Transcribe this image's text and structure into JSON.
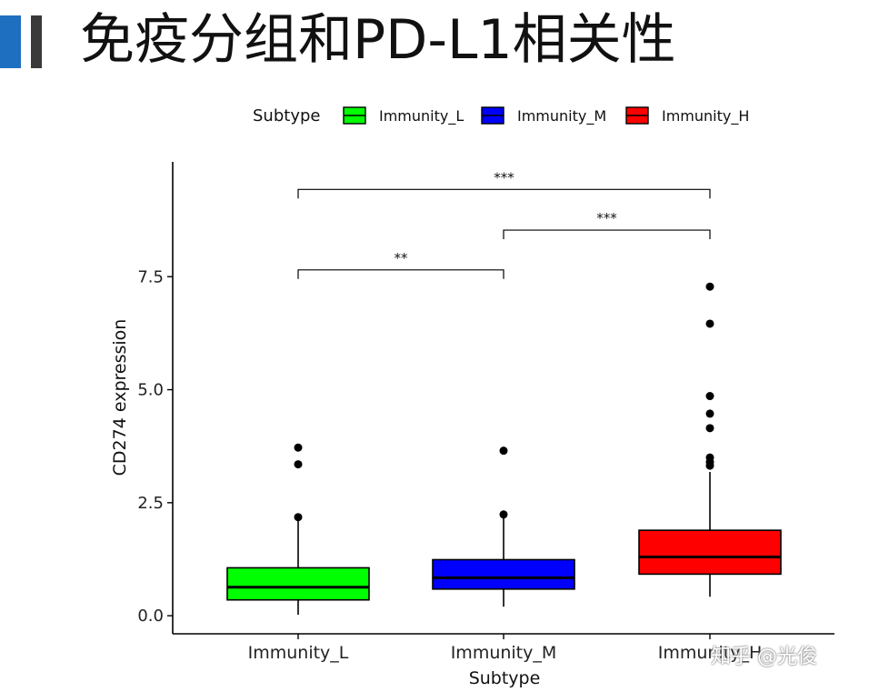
{
  "slide": {
    "title": "免疫分组和PD-L1相关性"
  },
  "watermark": "知乎 @光俊",
  "colors": {
    "accent_blue": "#1f6fc0",
    "accent_gray": "#3a3a3a"
  },
  "chart_data": {
    "type": "boxplot",
    "xlabel": "Subtype",
    "ylabel": "CD274 expression",
    "ylim": [
      -0.4,
      10.0
    ],
    "yticks": [
      0.0,
      2.5,
      5.0,
      7.5
    ],
    "ytick_labels": [
      "0.0",
      "2.5",
      "5.0",
      "7.5"
    ],
    "legend": {
      "title": "Subtype",
      "position": "top",
      "entries": [
        {
          "label": "Immunity_L",
          "color": "#00ff00"
        },
        {
          "label": "Immunity_M",
          "color": "#0000ff"
        },
        {
          "label": "Immunity_H",
          "color": "#ff0000"
        }
      ]
    },
    "categories": [
      "Immunity_L",
      "Immunity_M",
      "Immunity_H"
    ],
    "boxes": [
      {
        "name": "Immunity_L",
        "color": "#00ff00",
        "whisker_low": 0.02,
        "q1": 0.35,
        "median": 0.63,
        "q3": 1.06,
        "whisker_high": 2.1,
        "outliers": [
          2.18,
          3.35,
          3.72
        ]
      },
      {
        "name": "Immunity_M",
        "color": "#0000ff",
        "whisker_low": 0.2,
        "q1": 0.59,
        "median": 0.84,
        "q3": 1.24,
        "whisker_high": 2.2,
        "outliers": [
          2.24,
          3.65
        ]
      },
      {
        "name": "Immunity_H",
        "color": "#ff0000",
        "whisker_low": 0.42,
        "q1": 0.92,
        "median": 1.3,
        "q3": 1.89,
        "whisker_high": 3.18,
        "outliers": [
          3.32,
          3.4,
          3.5,
          4.15,
          4.47,
          4.86,
          6.46,
          7.28
        ]
      }
    ],
    "significance": [
      {
        "from": 0,
        "to": 1,
        "label": "**",
        "y": 7.65,
        "drop": 0.2
      },
      {
        "from": 1,
        "to": 2,
        "label": "***",
        "y": 8.53,
        "drop": 0.2
      },
      {
        "from": 0,
        "to": 2,
        "label": "***",
        "y": 9.43,
        "drop": 0.2
      }
    ]
  }
}
